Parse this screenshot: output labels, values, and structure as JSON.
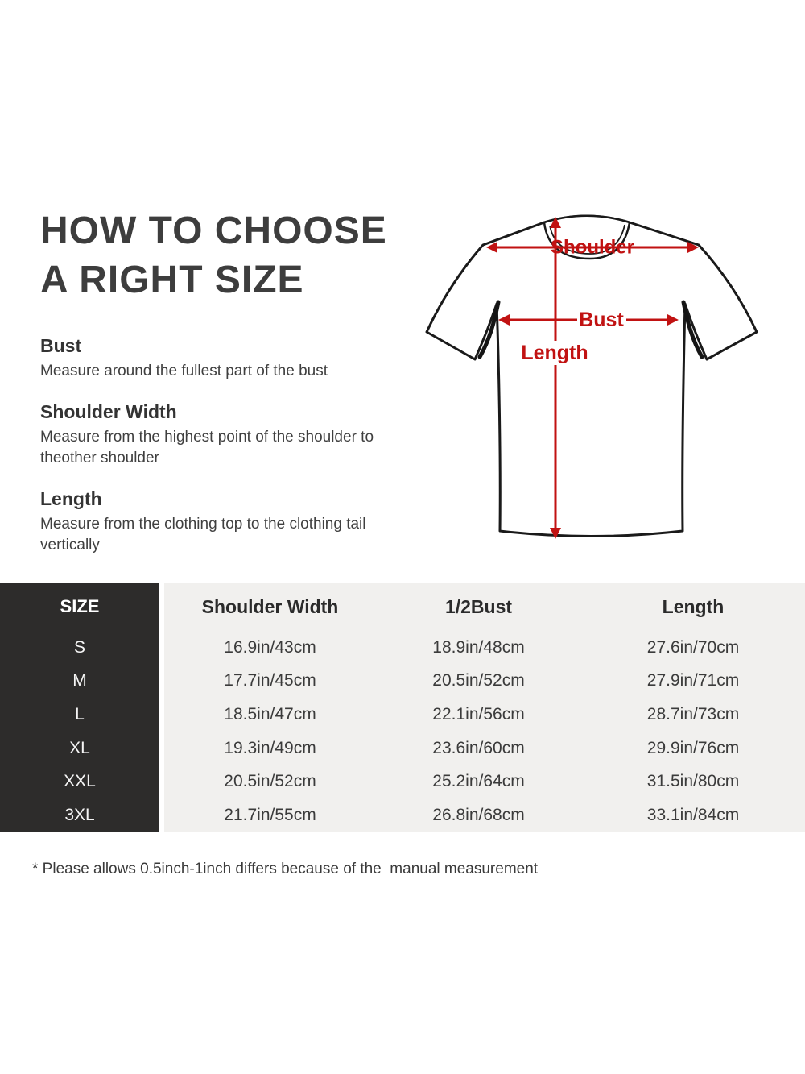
{
  "title": {
    "line1": "HOW TO CHOOSE",
    "line2": "A RIGHT SIZE"
  },
  "instructions": [
    {
      "heading": "Bust",
      "body": "Measure around the fullest part of the bust"
    },
    {
      "heading": "Shoulder Width",
      "body": "Measure from the highest point of the shoulder to theother shoulder"
    },
    {
      "heading": "Length",
      "body": "Measure from the clothing top to the clothing tail vertically"
    }
  ],
  "diagram": {
    "labels": {
      "shoulder": "Shoulder",
      "bust": "Bust",
      "length": "Length"
    },
    "arrow_color": "#c11212",
    "shirt_outline_color": "#1a1a1a"
  },
  "size_table": {
    "headers": [
      "SIZE",
      "Shoulder Width",
      "1/2Bust",
      "Length"
    ],
    "rows": [
      {
        "size": "S",
        "shoulder": "16.9in/43cm",
        "bust": "18.9in/48cm",
        "length": "27.6in/70cm"
      },
      {
        "size": "M",
        "shoulder": "17.7in/45cm",
        "bust": "20.5in/52cm",
        "length": "27.9in/71cm"
      },
      {
        "size": "L",
        "shoulder": "18.5in/47cm",
        "bust": "22.1in/56cm",
        "length": "28.7in/73cm"
      },
      {
        "size": "XL",
        "shoulder": "19.3in/49cm",
        "bust": "23.6in/60cm",
        "length": "29.9in/76cm"
      },
      {
        "size": "XXL",
        "shoulder": "20.5in/52cm",
        "bust": "25.2in/64cm",
        "length": "31.5in/80cm"
      },
      {
        "size": "3XL",
        "shoulder": "21.7in/55cm",
        "bust": "26.8in/68cm",
        "length": "33.1in/84cm"
      }
    ],
    "dark_column_color": "#2d2c2b",
    "light_area_color": "#f1f0ee"
  },
  "footnote": "* Please allows 0.5inch-1inch differs because of the  manual measurement"
}
